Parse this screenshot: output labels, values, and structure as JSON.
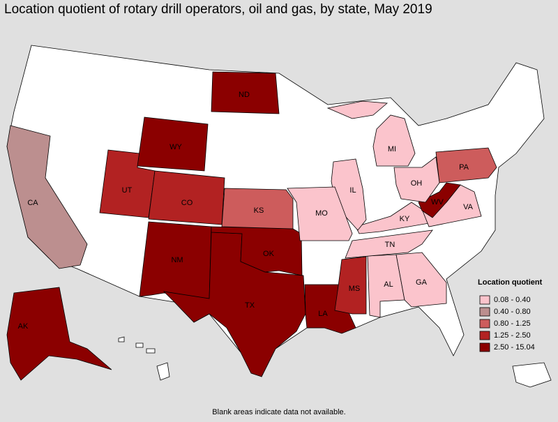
{
  "title": "Location quotient of rotary drill operators, oil and gas, by state, May 2019",
  "legend": {
    "title": "Location quotient",
    "items": [
      {
        "label": "0.08 - 0.40",
        "color": "#fbc4cc"
      },
      {
        "label": "0.40 - 0.80",
        "color": "#bc8f8f"
      },
      {
        "label": "0.80 - 1.25",
        "color": "#cd5c5c"
      },
      {
        "label": "1.25 - 2.50",
        "color": "#b22222"
      },
      {
        "label": "2.50 - 15.04",
        "color": "#8b0000"
      }
    ]
  },
  "states": [
    {
      "abbr": "CA",
      "class": 1
    },
    {
      "abbr": "AK",
      "class": 4
    },
    {
      "abbr": "UT",
      "class": 3
    },
    {
      "abbr": "CO",
      "class": 3
    },
    {
      "abbr": "NM",
      "class": 4
    },
    {
      "abbr": "WY",
      "class": 4
    },
    {
      "abbr": "ND",
      "class": 4
    },
    {
      "abbr": "TX",
      "class": 4
    },
    {
      "abbr": "OK",
      "class": 4
    },
    {
      "abbr": "KS",
      "class": 2
    },
    {
      "abbr": "LA",
      "class": 4
    },
    {
      "abbr": "MS",
      "class": 3
    },
    {
      "abbr": "AL",
      "class": 0
    },
    {
      "abbr": "GA",
      "class": 0
    },
    {
      "abbr": "TN",
      "class": 0
    },
    {
      "abbr": "KY",
      "class": 0
    },
    {
      "abbr": "VA",
      "class": 0
    },
    {
      "abbr": "WV",
      "class": 4
    },
    {
      "abbr": "PA",
      "class": 2
    },
    {
      "abbr": "OH",
      "class": 0
    },
    {
      "abbr": "IL",
      "class": 0
    },
    {
      "abbr": "MO",
      "class": 0
    },
    {
      "abbr": "MI",
      "class": 0
    }
  ],
  "footnote": "Blank areas indicate data not available."
}
